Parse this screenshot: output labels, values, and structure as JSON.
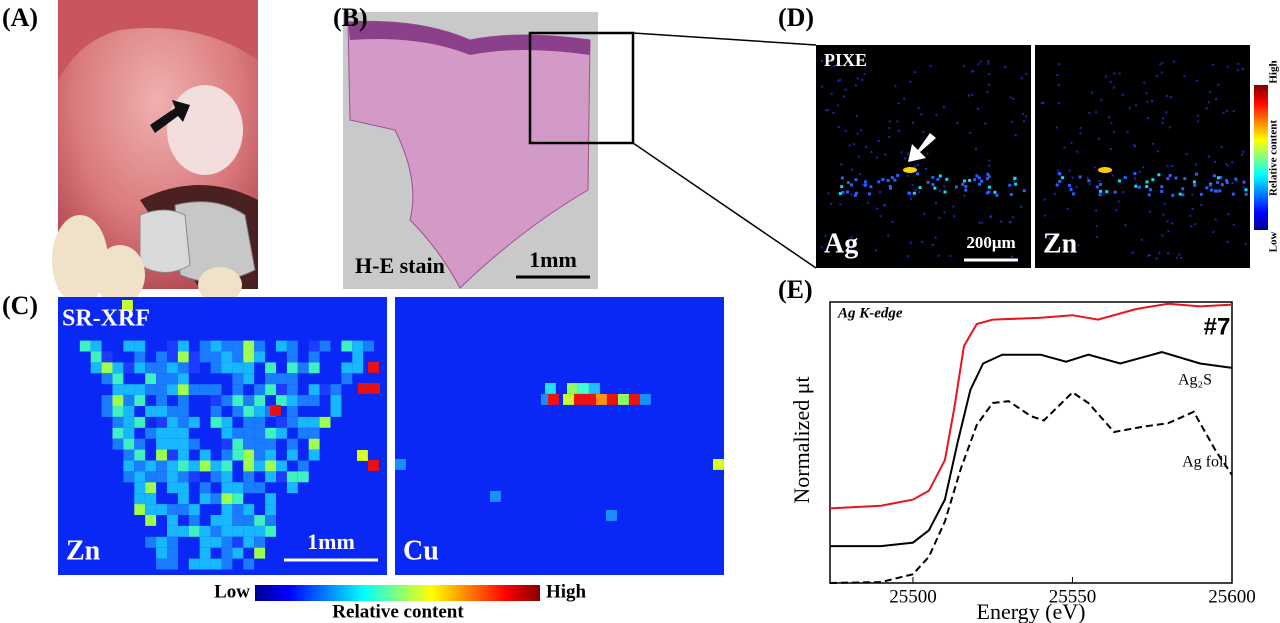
{
  "panels": {
    "A": {
      "label": "(A)"
    },
    "B": {
      "label": "(B)",
      "stain": "H-E stain",
      "scale": "1mm"
    },
    "C": {
      "label": "(C)",
      "method": "SR-XRF",
      "maps": [
        "Zn",
        "Cu"
      ],
      "scale": "1mm",
      "colorbar": {
        "low": "Low",
        "high": "High",
        "title": "Relative content"
      }
    },
    "D": {
      "label": "(D)",
      "method": "PIXE",
      "maps": [
        "Ag",
        "Zn"
      ],
      "scale": "200μm",
      "colorbar": {
        "low": "Low",
        "high": "High",
        "title": "Relative content"
      }
    },
    "E": {
      "label": "(E)"
    }
  },
  "chart_data": {
    "type": "line",
    "title": "Ag K-edge",
    "xlabel": "Energy (eV)",
    "ylabel": "Normalized μt",
    "xlim": [
      25474,
      25600
    ],
    "xticks": [
      25500,
      25550,
      25600
    ],
    "ylim": [
      0,
      3.2
    ],
    "series": [
      {
        "name": "#7",
        "color": "#e8141e",
        "line_style": "solid",
        "x": [
          25474,
          25490,
          25500,
          25505,
          25510,
          25513,
          25516,
          25520,
          25525,
          25540,
          25550,
          25558,
          25570,
          25580,
          25590,
          25600
        ],
        "values": [
          0.85,
          0.88,
          0.95,
          1.05,
          1.4,
          2.0,
          2.7,
          2.95,
          3.0,
          3.02,
          3.05,
          3.0,
          3.12,
          3.18,
          3.15,
          3.17
        ]
      },
      {
        "name": "Ag₂S",
        "color": "#000000",
        "line_style": "solid",
        "x": [
          25474,
          25490,
          25500,
          25505,
          25510,
          25514,
          25518,
          25522,
          25528,
          25540,
          25548,
          25555,
          25565,
          25578,
          25590,
          25600
        ],
        "values": [
          0.42,
          0.42,
          0.46,
          0.6,
          0.95,
          1.6,
          2.2,
          2.5,
          2.6,
          2.6,
          2.52,
          2.6,
          2.5,
          2.63,
          2.5,
          2.45
        ]
      },
      {
        "name": "Ag foil",
        "color": "#000000",
        "line_style": "dashed",
        "x": [
          25474,
          25490,
          25500,
          25505,
          25510,
          25515,
          25520,
          25525,
          25530,
          25537,
          25541,
          25550,
          25555,
          25563,
          25572,
          25580,
          25588,
          25595,
          25600
        ],
        "values": [
          0,
          0.01,
          0.1,
          0.3,
          0.7,
          1.3,
          1.8,
          2.05,
          2.07,
          1.9,
          1.85,
          2.17,
          2.05,
          1.72,
          1.78,
          1.82,
          1.95,
          1.5,
          1.23
        ]
      }
    ]
  }
}
